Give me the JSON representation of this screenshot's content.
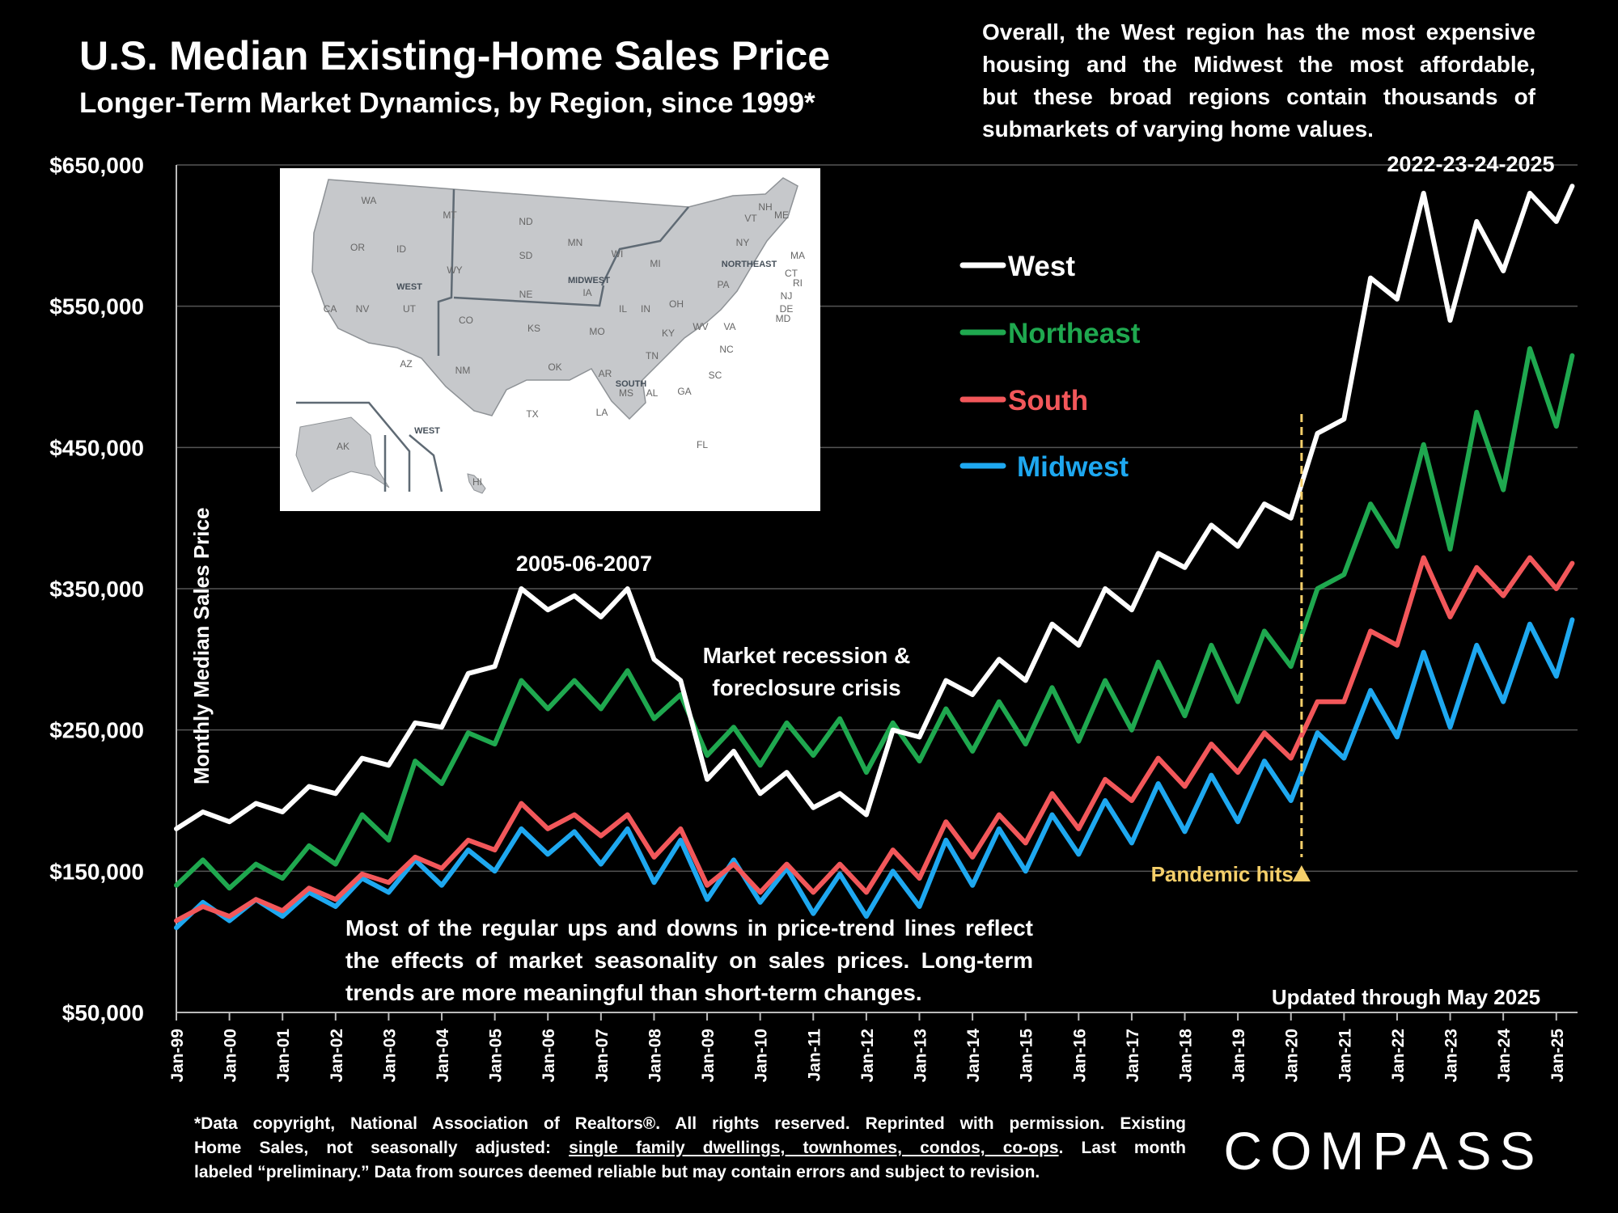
{
  "page": {
    "title": "U.S. Median Existing-Home Sales Price",
    "subtitle": "Longer-Term Market Dynamics, by Region, since 1999*",
    "top_note": [
      "Overall, the West region has the most expensive",
      "housing and the Midwest the most affordable,",
      "but these broad regions contain thousands of",
      "submarkets of varying home values."
    ],
    "bottom_note": [
      "Most of the regular ups and downs in price-trend lines reflect",
      "the effects of market seasonality on sales prices. Long-term",
      "trends are more meaningful than short-term changes."
    ],
    "footnote_line1": "*Data copyright, National Association of Realtors®. All rights reserved. Reprinted with permission. Existing",
    "footnote_line2_a": "Home Sales, not seasonally adjusted:  ",
    "footnote_line2_u": "single family dwellings, townhomes, condos, co-ops",
    "footnote_line2_b": ". Last month",
    "footnote_line3": "labeled “preliminary.” Data from sources deemed reliable but may contain errors and subject to revision.",
    "logo_text": "COMPASS",
    "colors": {
      "background": "#000000",
      "west": "#ffffff",
      "northeast": "#1fa84f",
      "south": "#f2575a",
      "midwest": "#1ea8f0",
      "pandemic": "#f5cf6a"
    }
  },
  "map": {
    "states": [
      "WA",
      "MT",
      "ND",
      "MN",
      "OR",
      "ID",
      "SD",
      "WI",
      "MI",
      "NY",
      "VT",
      "NH",
      "ME",
      "MA",
      "CT",
      "RI",
      "NJ",
      "DE",
      "MD",
      "WY",
      "NE",
      "IA",
      "PA",
      "OH",
      "IL",
      "IN",
      "WV",
      "VA",
      "CA",
      "NV",
      "UT",
      "CO",
      "KS",
      "MO",
      "KY",
      "NC",
      "TN",
      "SC",
      "AZ",
      "NM",
      "OK",
      "AR",
      "MS",
      "AL",
      "GA",
      "TX",
      "LA",
      "FL",
      "AK",
      "HI"
    ],
    "region_labels": [
      "WEST",
      "MIDWEST",
      "NORTHEAST",
      "SOUTH",
      "WEST"
    ]
  },
  "chart_data": {
    "type": "line",
    "title": "U.S. Median Existing-Home Sales Price",
    "subtitle": "Longer-Term Market Dynamics, by Region, since 1999*",
    "ylabel": "Monthly Median Sales Price",
    "xlabel": "",
    "ylim": [
      50000,
      650000
    ],
    "yticks": [
      "$650,000",
      "$550,000",
      "$450,000",
      "$350,000",
      "$250,000",
      "$150,000",
      "$50,000"
    ],
    "xticks": [
      "Jan-99",
      "Jan-00",
      "Jan-01",
      "Jan-02",
      "Jan-03",
      "Jan-04",
      "Jan-05",
      "Jan-06",
      "Jan-07",
      "Jan-08",
      "Jan-09",
      "Jan-10",
      "Jan-11",
      "Jan-12",
      "Jan-13",
      "Jan-14",
      "Jan-15",
      "Jan-16",
      "Jan-17",
      "Jan-18",
      "Jan-19",
      "Jan-20",
      "Jan-21",
      "Jan-22",
      "Jan-23",
      "Jan-24",
      "Jan-25"
    ],
    "x": [
      1999.0,
      1999.5,
      2000.0,
      2000.5,
      2001.0,
      2001.5,
      2002.0,
      2002.5,
      2003.0,
      2003.5,
      2004.0,
      2004.5,
      2005.0,
      2005.5,
      2006.0,
      2006.5,
      2007.0,
      2007.5,
      2008.0,
      2008.5,
      2009.0,
      2009.5,
      2010.0,
      2010.5,
      2011.0,
      2011.5,
      2012.0,
      2012.5,
      2013.0,
      2013.5,
      2014.0,
      2014.5,
      2015.0,
      2015.5,
      2016.0,
      2016.5,
      2017.0,
      2017.5,
      2018.0,
      2018.5,
      2019.0,
      2019.5,
      2020.0,
      2020.5,
      2021.0,
      2021.5,
      2022.0,
      2022.5,
      2023.0,
      2023.5,
      2024.0,
      2024.5,
      2025.0,
      2025.3
    ],
    "series": [
      {
        "name": "West",
        "values": [
          180000,
          192000,
          185000,
          198000,
          192000,
          210000,
          205000,
          230000,
          225000,
          255000,
          252000,
          290000,
          295000,
          350000,
          335000,
          345000,
          330000,
          350000,
          300000,
          285000,
          215000,
          235000,
          205000,
          220000,
          195000,
          205000,
          190000,
          250000,
          245000,
          285000,
          275000,
          300000,
          285000,
          325000,
          310000,
          350000,
          335000,
          375000,
          365000,
          395000,
          380000,
          410000,
          400000,
          460000,
          470000,
          570000,
          555000,
          630000,
          540000,
          610000,
          575000,
          630000,
          610000,
          635000
        ]
      },
      {
        "name": "Northeast",
        "values": [
          140000,
          158000,
          138000,
          155000,
          145000,
          168000,
          155000,
          190000,
          172000,
          228000,
          212000,
          248000,
          240000,
          285000,
          265000,
          285000,
          265000,
          292000,
          258000,
          275000,
          232000,
          252000,
          225000,
          255000,
          232000,
          258000,
          220000,
          255000,
          228000,
          265000,
          235000,
          270000,
          240000,
          280000,
          242000,
          285000,
          250000,
          298000,
          260000,
          310000,
          270000,
          320000,
          295000,
          350000,
          360000,
          410000,
          380000,
          452000,
          378000,
          475000,
          420000,
          520000,
          465000,
          515000
        ]
      },
      {
        "name": "South",
        "values": [
          115000,
          125000,
          118000,
          130000,
          122000,
          138000,
          130000,
          148000,
          142000,
          160000,
          152000,
          172000,
          165000,
          198000,
          180000,
          190000,
          175000,
          190000,
          160000,
          180000,
          140000,
          155000,
          135000,
          155000,
          135000,
          155000,
          135000,
          165000,
          145000,
          185000,
          160000,
          190000,
          170000,
          205000,
          180000,
          215000,
          200000,
          230000,
          210000,
          240000,
          220000,
          248000,
          230000,
          270000,
          270000,
          320000,
          310000,
          372000,
          330000,
          365000,
          345000,
          372000,
          350000,
          368000
        ]
      },
      {
        "name": "Midwest",
        "values": [
          110000,
          128000,
          115000,
          130000,
          118000,
          135000,
          125000,
          145000,
          135000,
          158000,
          140000,
          165000,
          150000,
          180000,
          162000,
          178000,
          155000,
          180000,
          142000,
          172000,
          130000,
          158000,
          128000,
          152000,
          120000,
          148000,
          118000,
          150000,
          125000,
          172000,
          140000,
          180000,
          150000,
          190000,
          162000,
          200000,
          170000,
          212000,
          178000,
          218000,
          185000,
          228000,
          200000,
          248000,
          230000,
          278000,
          245000,
          305000,
          252000,
          310000,
          270000,
          325000,
          288000,
          328000
        ]
      }
    ],
    "legend": [
      "West",
      "Northeast",
      "South",
      "Midwest"
    ],
    "legend_position": "upper-right",
    "annotations": {
      "peak_1": "2005-06-2007",
      "peak_2": "2022-23-24-2025",
      "recession": [
        "Market recession &",
        "foreclosure crisis"
      ],
      "pandemic": "Pandemic hits",
      "updated": "Updated through May 2025"
    },
    "pandemic_x": 2020.2,
    "grid": true
  }
}
